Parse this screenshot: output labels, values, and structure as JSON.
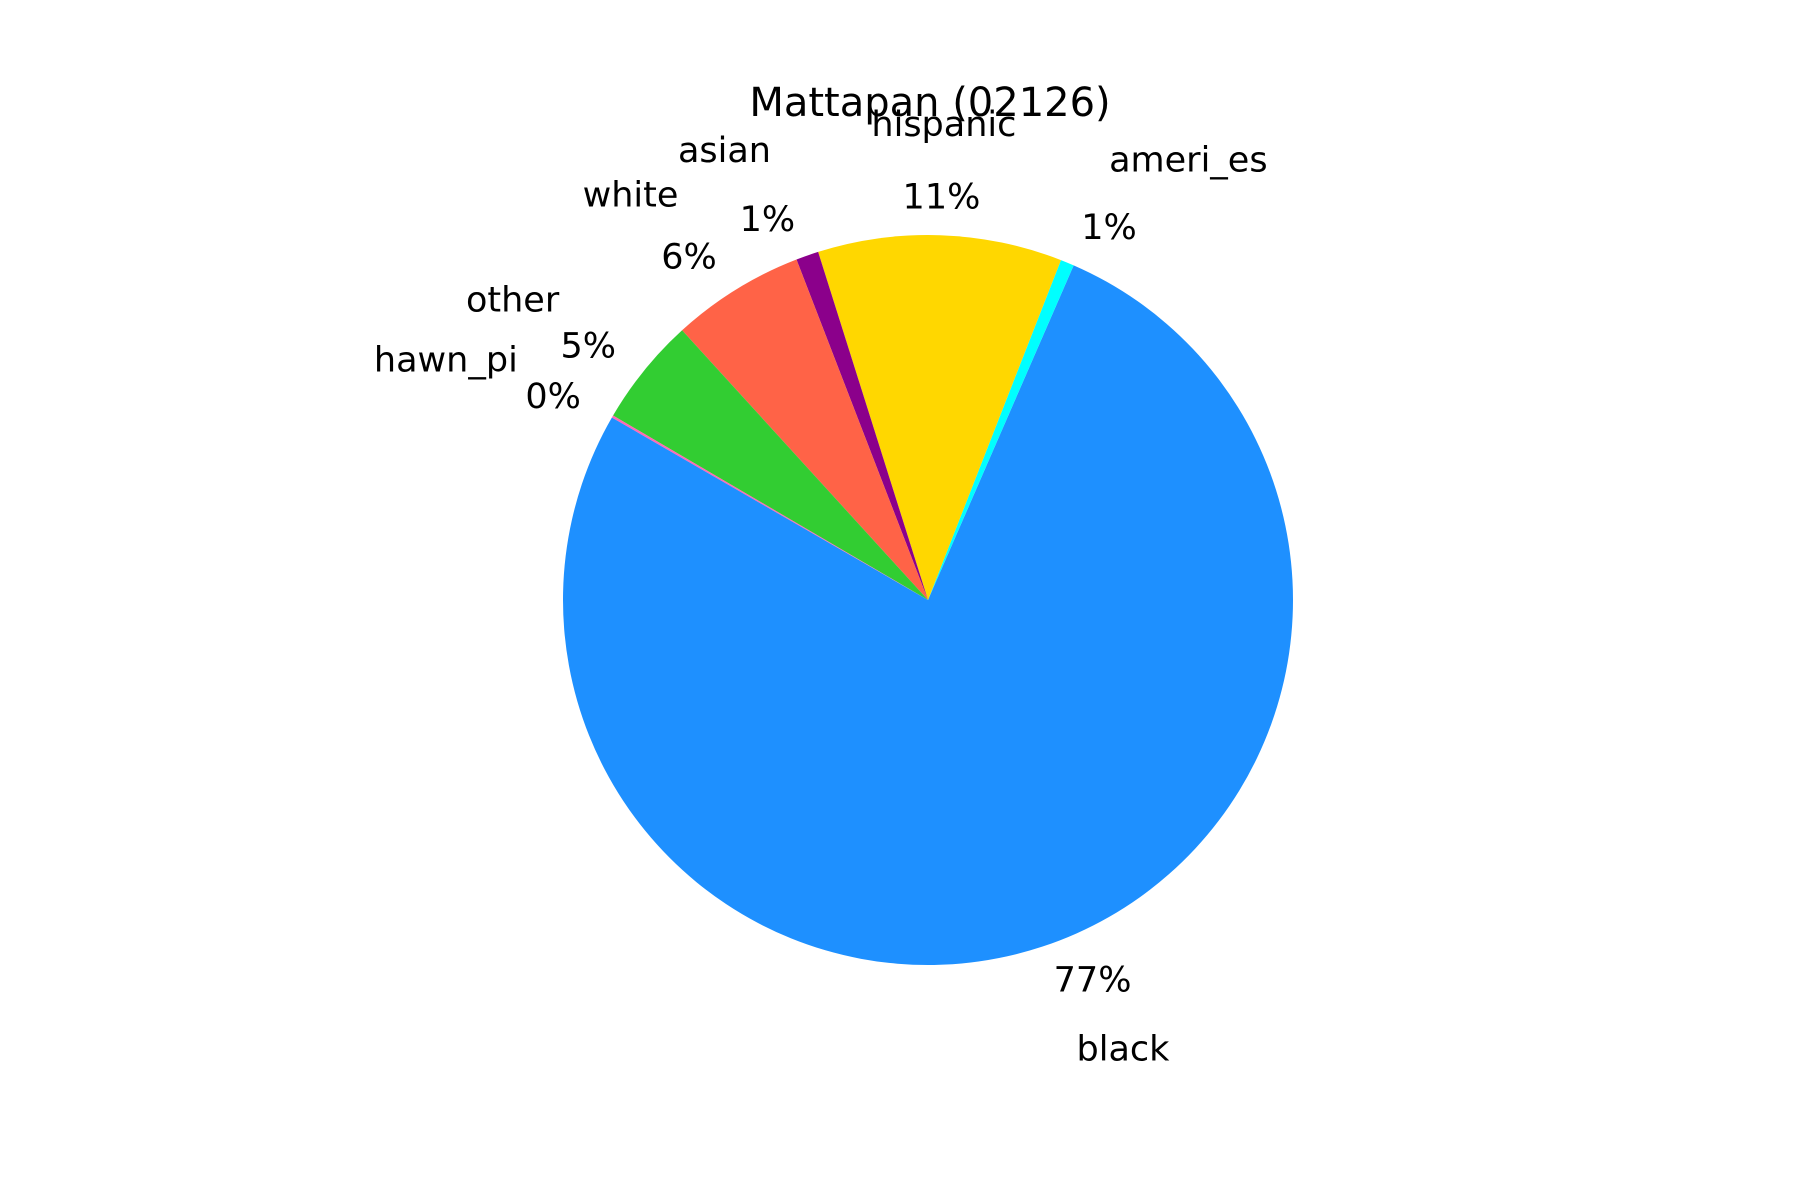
{
  "chart_data": {
    "type": "pie",
    "title": "Mattapan (02126)",
    "slices": [
      {
        "label": "black",
        "pct_label": "77%",
        "value": 76.8,
        "color": "#1e90ff"
      },
      {
        "label": "ameri_es",
        "pct_label": "1%",
        "value": 0.6,
        "color": "#00ffff"
      },
      {
        "label": "hispanic",
        "pct_label": "11%",
        "value": 10.8,
        "color": "#ffd700"
      },
      {
        "label": "asian",
        "pct_label": "1%",
        "value": 1.0,
        "color": "#8b008b"
      },
      {
        "label": "white",
        "pct_label": "6%",
        "value": 5.9,
        "color": "#ff6347"
      },
      {
        "label": "other",
        "pct_label": "5%",
        "value": 4.8,
        "color": "#32cd32"
      },
      {
        "label": "hawn_pi",
        "pct_label": "0%",
        "value": 0.1,
        "color": "#ff69b4"
      }
    ]
  }
}
